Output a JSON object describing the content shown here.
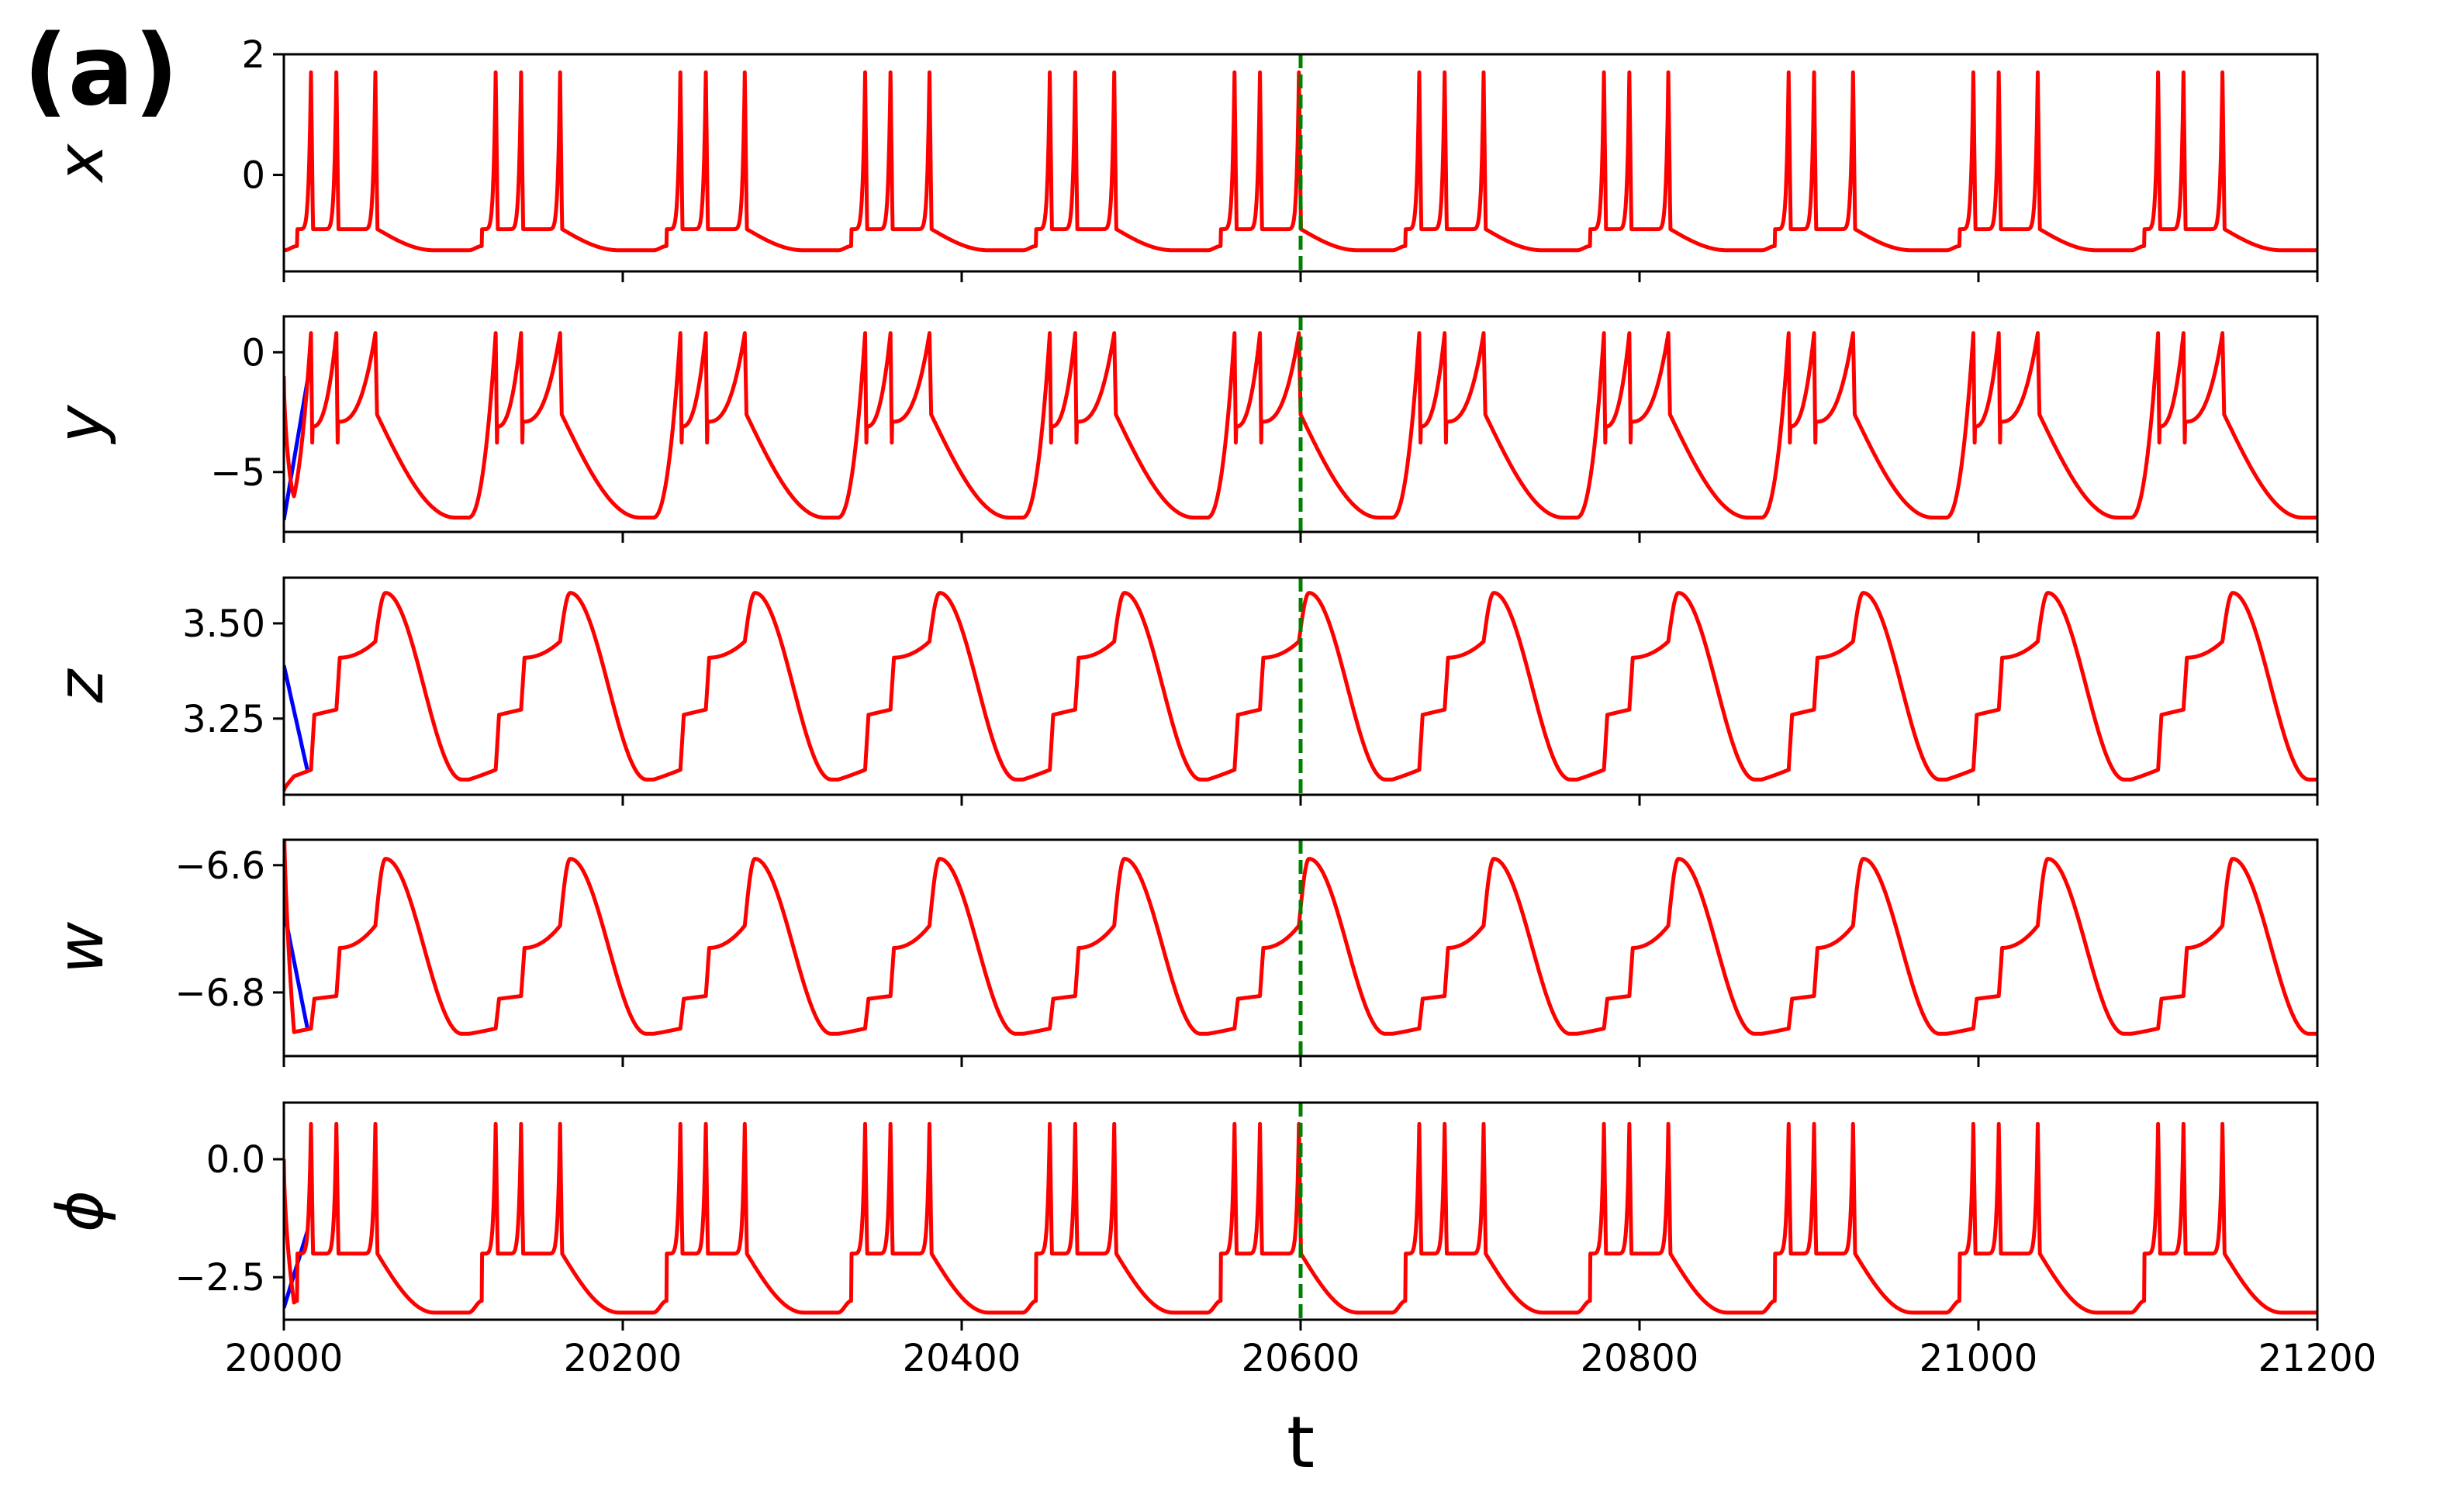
{
  "panel_label": "(a)",
  "colors": {
    "main": "#ff0000",
    "reference": "#0000ff",
    "marker": "#008000"
  },
  "chart_data": {
    "type": "line",
    "xlabel": "t",
    "xlim": [
      20000,
      21200
    ],
    "xticks": [
      20000,
      20200,
      20400,
      20600,
      20800,
      21000,
      21200
    ],
    "xtick_labels": [
      "20000",
      "20200",
      "20400",
      "20600",
      "20800",
      "21000",
      "21200"
    ],
    "marker_line": {
      "x": 20600,
      "style": "dashed",
      "color": "#008000"
    },
    "period": 109,
    "spike_offsets": [
      16,
      31,
      54
    ],
    "panels": [
      {
        "ylabel": "x",
        "ylim": [
          -1.6,
          2.0
        ],
        "yticks": [
          0,
          2
        ],
        "ytick_labels": [
          "0",
          "2"
        ],
        "waveform": "spikes",
        "baseline": -1.25,
        "between": -0.9,
        "peak": 1.7,
        "start_value": null,
        "reference_start": null
      },
      {
        "ylabel": "y",
        "ylim": [
          -7.5,
          1.5
        ],
        "yticks": [
          -5,
          0
        ],
        "ytick_labels": [
          "−5",
          "0"
        ],
        "waveform": "sawtooth",
        "minimum": -6.9,
        "plateau": -2.6,
        "peak": 0.8,
        "dip": -5.3,
        "start_value": -1.0,
        "reference_start": -7.0
      },
      {
        "ylabel": "z",
        "ylim": [
          3.05,
          3.62
        ],
        "yticks": [
          3.25,
          3.5
        ],
        "ytick_labels": [
          "3.25",
          "3.50"
        ],
        "waveform": "staircase",
        "minimum": 3.09,
        "steps": [
          3.26,
          3.41,
          3.58
        ],
        "start_value": 3.06,
        "reference_start": 3.39
      },
      {
        "ylabel": "w",
        "ylim": [
          -6.9,
          -6.56
        ],
        "yticks": [
          -6.8,
          -6.6
        ],
        "ytick_labels": [
          "−6.8",
          "−6.6"
        ],
        "waveform": "staircase",
        "minimum": -6.865,
        "steps": [
          -6.81,
          -6.73,
          -6.59
        ],
        "start_value": -6.5,
        "reference_start": -6.67
      },
      {
        "ylabel": "ϕ",
        "ylim": [
          -3.4,
          1.2
        ],
        "yticks": [
          -2.5,
          0.0
        ],
        "ytick_labels": [
          "−2.5",
          "0.0"
        ],
        "waveform": "spikes",
        "baseline": -3.25,
        "between": -2.0,
        "peak": 0.75,
        "start_value": 0.0,
        "reference_start": -3.15
      }
    ]
  }
}
